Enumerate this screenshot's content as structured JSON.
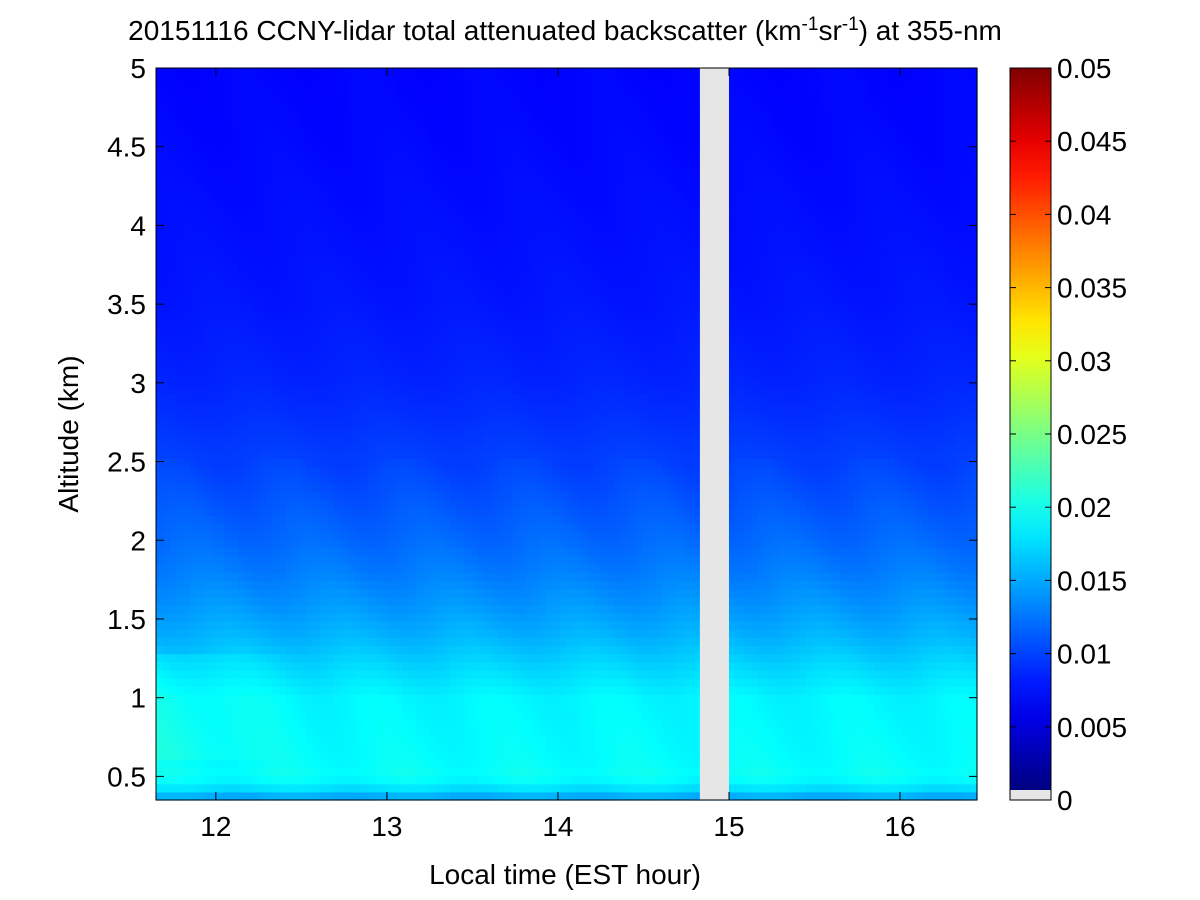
{
  "chart_data": {
    "type": "heatmap",
    "title_main": "20151116 CCNY-lidar total attenuated backscatter (km",
    "title_sup1": "-1",
    "title_mid": "sr",
    "title_sup2": "-1",
    "title_end": ") at 355-nm",
    "xlabel": "Local time (EST hour)",
    "ylabel": "Altitude (km)",
    "xlim": [
      11.65,
      16.45
    ],
    "ylim": [
      0.35,
      5
    ],
    "xticks": [
      "12",
      "13",
      "14",
      "15",
      "16"
    ],
    "yticks": [
      "0.5",
      "1",
      "1.5",
      "2",
      "2.5",
      "3",
      "3.5",
      "4",
      "4.5",
      "5"
    ],
    "colorbar": {
      "min": 0,
      "max": 0.05,
      "ticks": [
        "0",
        "0.005",
        "0.01",
        "0.015",
        "0.02",
        "0.025",
        "0.03",
        "0.035",
        "0.04",
        "0.045",
        "0.05"
      ],
      "colormap": "jet"
    },
    "no_data_gap": [
      14.83,
      15.0
    ],
    "no_data_color": "#e6e6e6",
    "profile": {
      "altitude_km": [
        0.35,
        0.42,
        0.5,
        0.6,
        0.8,
        1.0,
        1.2,
        1.4,
        1.6,
        1.8,
        2.0,
        2.2,
        2.5,
        2.8,
        3.0,
        3.5,
        4.0,
        4.5,
        5.0
      ],
      "backscatter": [
        0.0135,
        0.0172,
        0.0192,
        0.0188,
        0.0186,
        0.0184,
        0.0168,
        0.015,
        0.0136,
        0.0124,
        0.0114,
        0.0106,
        0.0094,
        0.0085,
        0.008,
        0.0073,
        0.0069,
        0.0066,
        0.0064
      ]
    }
  }
}
